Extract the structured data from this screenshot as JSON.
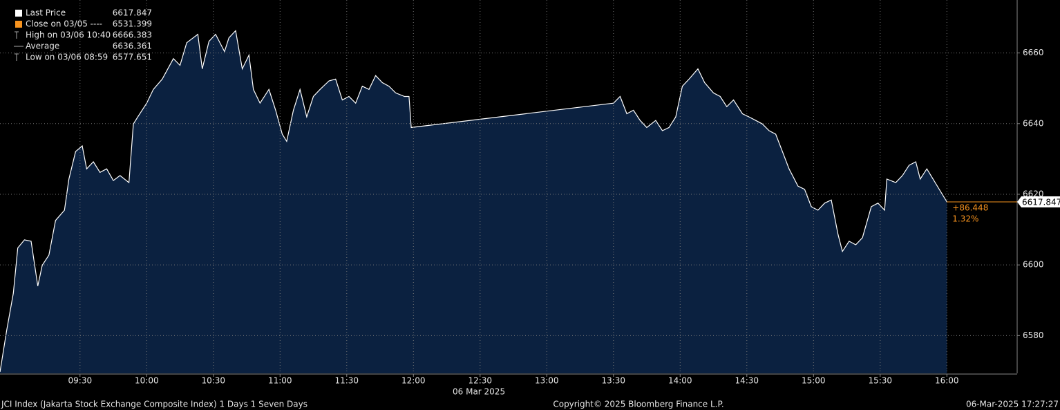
{
  "chart_data": {
    "type": "area",
    "x": [
      "08:54",
      "08:57",
      "09:00",
      "09:02",
      "09:05",
      "09:08",
      "09:11",
      "09:13",
      "09:16",
      "09:19",
      "09:23",
      "09:25",
      "09:28",
      "09:31",
      "09:33",
      "09:36",
      "09:39",
      "09:42",
      "09:45",
      "09:48",
      "09:52",
      "09:54",
      "09:56",
      "10:00",
      "10:03",
      "10:07",
      "10:12",
      "10:15",
      "10:18",
      "10:23",
      "10:25",
      "10:28",
      "10:31",
      "10:35",
      "10:37",
      "10:40",
      "10:43",
      "10:46",
      "10:48",
      "10:51",
      "10:55",
      "10:58",
      "11:01",
      "11:03",
      "11:06",
      "11:09",
      "11:12",
      "11:15",
      "11:18",
      "11:22",
      "11:25",
      "11:28",
      "11:31",
      "11:34",
      "11:37",
      "11:40",
      "11:43",
      "11:46",
      "11:49",
      "11:52",
      "11:56",
      "11:58",
      "11:59",
      "13:30",
      "13:33",
      "13:36",
      "13:39",
      "13:42",
      "13:45",
      "13:49",
      "13:52",
      "13:55",
      "13:58",
      "14:01",
      "14:04",
      "14:08",
      "14:11",
      "14:15",
      "14:18",
      "14:21",
      "14:24",
      "14:28",
      "14:31",
      "14:34",
      "14:37",
      "14:40",
      "14:43",
      "14:46",
      "14:49",
      "14:53",
      "14:56",
      "14:59",
      "15:02",
      "15:05",
      "15:08",
      "15:11",
      "15:13",
      "15:16",
      "15:19",
      "15:22",
      "15:26",
      "15:29",
      "15:32",
      "15:33",
      "15:37",
      "15:40",
      "15:43",
      "15:46",
      "15:48",
      "15:51",
      "16:00"
    ],
    "values": [
      6569.7,
      6581.4,
      6592,
      6604.8,
      6607.1,
      6606.7,
      6594,
      6599.9,
      6602.8,
      6612.6,
      6615.5,
      6624.3,
      6632.1,
      6633.7,
      6627.2,
      6629.2,
      6626.2,
      6627.2,
      6623.9,
      6625.3,
      6623.3,
      6639.9,
      6641.9,
      6645.8,
      6649.7,
      6652.6,
      6658.4,
      6656.5,
      6662.9,
      6665.3,
      6655.5,
      6663.3,
      6665.3,
      6660.4,
      6664.3,
      6666.3,
      6655.5,
      6659.4,
      6649.7,
      6645.8,
      6649.7,
      6643.8,
      6637,
      6635,
      6643.8,
      6649.7,
      6641.9,
      6647.7,
      6649.7,
      6652.1,
      6652.6,
      6646.7,
      6647.7,
      6645.8,
      6650.6,
      6649.7,
      6653.6,
      6651.6,
      6650.6,
      6648.7,
      6647.7,
      6647.7,
      6638.9,
      6645.8,
      6647.7,
      6642.8,
      6643.8,
      6640.9,
      6638.9,
      6640.9,
      6638,
      6638.9,
      6641.9,
      6650.6,
      6652.6,
      6655.5,
      6651.6,
      6648.7,
      6647.7,
      6644.8,
      6646.7,
      6642.8,
      6641.9,
      6640.9,
      6639.9,
      6638,
      6637,
      6632.1,
      6627.2,
      6622.3,
      6621.4,
      6616.5,
      6615.5,
      6617.5,
      6618.4,
      6608.7,
      6603.8,
      6606.7,
      6605.7,
      6607.7,
      6616.5,
      6617.5,
      6615.5,
      6624.3,
      6623.3,
      6625.3,
      6628.2,
      6629.2,
      6624.3,
      6627.2,
      6617.847
    ],
    "color": "#ffffff",
    "fill": "#0b2140",
    "change_color": "#f7931e",
    "xlim": [
      "08:54",
      "16:31"
    ],
    "xticks": [
      "09:30",
      "10:00",
      "10:30",
      "11:00",
      "11:30",
      "12:00",
      "12:30",
      "13:00",
      "13:30",
      "14:00",
      "14:30",
      "15:00",
      "15:30",
      "16:00"
    ],
    "xlabel": "06 Mar 2025",
    "ylim": [
      6569.3,
      6675
    ],
    "yticks": [
      6580,
      6600,
      6620,
      6640,
      6660
    ],
    "grid": true,
    "legend": [
      {
        "label": "Last Price",
        "value": "6617.847"
      },
      {
        "label": "Close on 03/05 ----",
        "value": "6531.399"
      },
      {
        "label": "High on 03/06 10:40",
        "value": "6666.383"
      },
      {
        "label": "Average",
        "value": "6636.361"
      },
      {
        "label": "Low on 03/06 08:59",
        "value": "6577.651"
      }
    ],
    "last_price": 6617.847,
    "change_labels": [
      "+86.448",
      "1.32%"
    ],
    "footer": {
      "left": "JCI Index (Jakarta Stock Exchange Composite Index) 1 Days 1 Seven Days",
      "center": "Copyright© 2025 Bloomberg Finance L.P.",
      "right": "06-Mar-2025 17:27:27"
    }
  }
}
